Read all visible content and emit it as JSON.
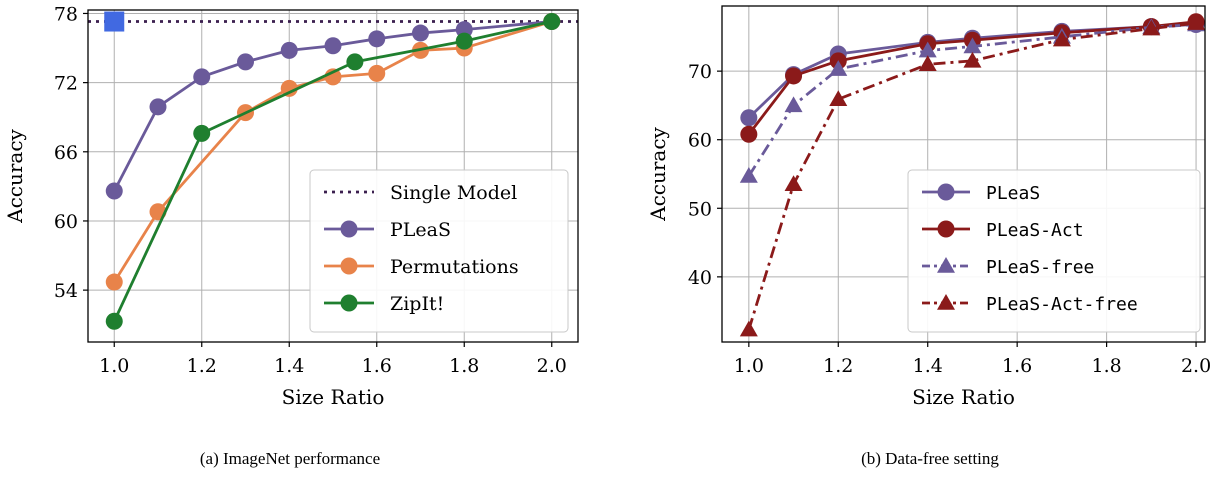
{
  "chart_data": [
    {
      "type": "line",
      "caption": "(a) ImageNet performance",
      "xlabel": "Size Ratio",
      "ylabel": "Accuracy",
      "xlim": [
        0.94,
        2.06
      ],
      "ylim": [
        49.5,
        78.3
      ],
      "xticks": [
        1.0,
        1.2,
        1.4,
        1.6,
        1.8,
        2.0
      ],
      "xtick_labels": [
        "1.0",
        "1.2",
        "1.4",
        "1.6",
        "1.8",
        "2.0"
      ],
      "yticks": [
        54,
        60,
        66,
        72,
        78
      ],
      "ytick_labels": [
        "54",
        "60",
        "66",
        "72",
        "78"
      ],
      "grid": true,
      "legend_position": "lower-right",
      "reference": {
        "name": "Single Model",
        "y": 77.3,
        "color": "#3b1f4f",
        "marker_x": 1.0,
        "marker_color": "#4169e1"
      },
      "series": [
        {
          "name": "PLeaS",
          "color": "#6a5a9a",
          "marker": "circle",
          "dash": "solid",
          "x": [
            1.0,
            1.1,
            1.2,
            1.3,
            1.4,
            1.5,
            1.6,
            1.7,
            1.8,
            2.0
          ],
          "y": [
            62.6,
            69.9,
            72.5,
            73.8,
            74.8,
            75.2,
            75.8,
            76.3,
            76.6,
            77.3
          ]
        },
        {
          "name": "Permutations",
          "color": "#e8834a",
          "marker": "circle",
          "dash": "solid",
          "x": [
            1.0,
            1.1,
            1.3,
            1.4,
            1.5,
            1.6,
            1.7,
            1.8,
            2.0
          ],
          "y": [
            54.7,
            60.8,
            69.4,
            71.5,
            72.5,
            72.8,
            74.8,
            75.0,
            77.3
          ]
        },
        {
          "name": "ZipIt!",
          "color": "#1f7f2f",
          "marker": "circle",
          "dash": "solid",
          "x": [
            1.0,
            1.2,
            1.55,
            1.8,
            2.0
          ],
          "y": [
            51.3,
            67.6,
            73.8,
            75.6,
            77.3
          ]
        }
      ]
    },
    {
      "type": "line",
      "caption": "(b) Data-free setting",
      "xlabel": "Size Ratio",
      "ylabel": "Accuracy",
      "xlim": [
        0.94,
        2.02
      ],
      "ylim": [
        30.5,
        79.5
      ],
      "xticks": [
        1.0,
        1.2,
        1.4,
        1.6,
        1.8,
        2.0
      ],
      "xtick_labels": [
        "1.0",
        "1.2",
        "1.4",
        "1.6",
        "1.8",
        "2.0"
      ],
      "yticks": [
        40,
        50,
        60,
        70
      ],
      "ytick_labels": [
        "40",
        "50",
        "60",
        "70"
      ],
      "grid": true,
      "legend_position": "lower-right",
      "series": [
        {
          "name": "PLeaS",
          "color": "#6a5a9a",
          "marker": "circle",
          "dash": "solid",
          "x": [
            1.0,
            1.1,
            1.2,
            1.4,
            1.5,
            1.7,
            1.9,
            2.0
          ],
          "y": [
            63.2,
            69.5,
            72.5,
            74.2,
            74.8,
            75.8,
            76.5,
            76.8
          ]
        },
        {
          "name": "PLeaS-Act",
          "color": "#8b1a1a",
          "marker": "circle",
          "dash": "solid",
          "x": [
            1.0,
            1.1,
            1.2,
            1.4,
            1.5,
            1.7,
            1.9,
            2.0
          ],
          "y": [
            60.8,
            69.3,
            71.5,
            74.0,
            74.5,
            75.6,
            76.5,
            77.2
          ]
        },
        {
          "name": "PLeaS-free",
          "color": "#6a5a9a",
          "marker": "triangle",
          "dash": "dashdot",
          "x": [
            1.0,
            1.1,
            1.2,
            1.4,
            1.5,
            1.7,
            1.9,
            2.0
          ],
          "y": [
            54.7,
            65.0,
            70.3,
            73.0,
            73.6,
            75.0,
            76.4,
            76.8
          ]
        },
        {
          "name": "PLeaS-Act-free",
          "color": "#8b1a1a",
          "marker": "triangle",
          "dash": "dashdot",
          "x": [
            1.0,
            1.1,
            1.2,
            1.4,
            1.5,
            1.7,
            1.9,
            2.0
          ],
          "y": [
            32.3,
            53.5,
            65.9,
            71.0,
            71.5,
            74.6,
            76.2,
            77.0
          ]
        }
      ]
    }
  ]
}
